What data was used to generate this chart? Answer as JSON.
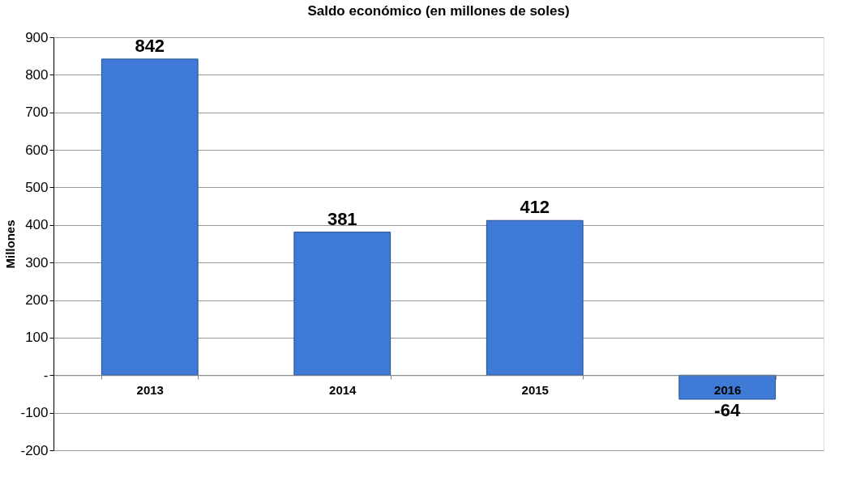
{
  "chart_data": {
    "type": "bar",
    "title": "Saldo económico (en millones de soles)",
    "ylabel": "Millones",
    "categories": [
      "2013",
      "2014",
      "2015",
      "2016"
    ],
    "values": [
      842,
      381,
      412,
      -64
    ],
    "color": "#3f7bd6",
    "ylim": [
      -200,
      900
    ],
    "yticks": [
      -200,
      -100,
      {
        "value": 0,
        "label": "-"
      },
      100,
      200,
      300,
      400,
      500,
      600,
      700,
      800,
      900
    ],
    "grid": "y",
    "data_labels": true
  }
}
